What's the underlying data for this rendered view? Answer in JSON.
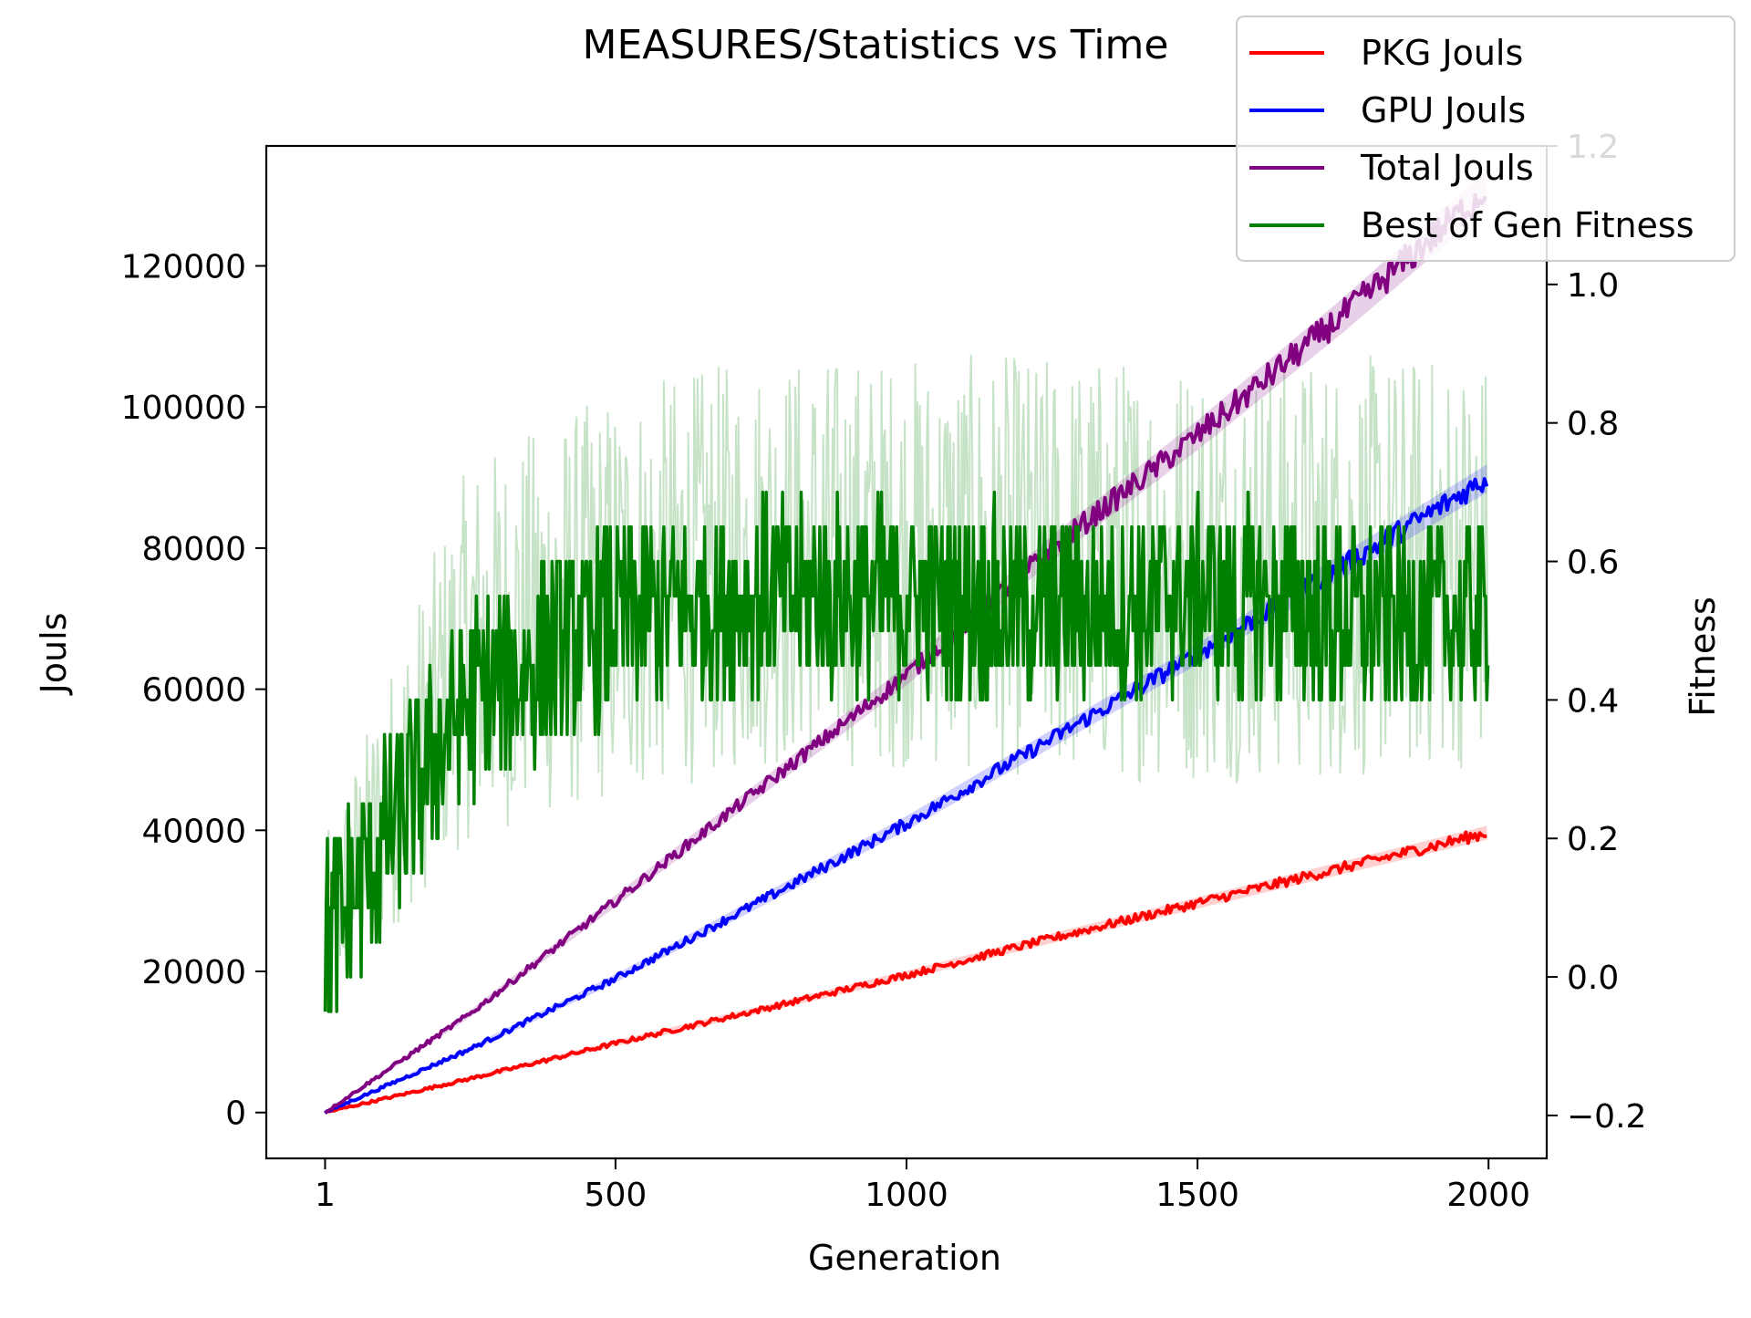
{
  "chart_data": {
    "type": "line",
    "title": "MEASURES/Statistics vs Time",
    "xlabel": "Generation",
    "ylabel": "Jouls",
    "y2label": "Fitness",
    "xlim": [
      -100,
      2100
    ],
    "ylim": [
      -6500,
      137000
    ],
    "y2lim": [
      -0.262,
      1.2
    ],
    "x_ticks": [
      1,
      500,
      1000,
      1500,
      2000
    ],
    "y_ticks": [
      0,
      20000,
      40000,
      60000,
      80000,
      100000,
      120000
    ],
    "y2_ticks": [
      -0.2,
      0.0,
      0.2,
      0.4,
      0.6,
      0.8,
      1.0,
      1.2
    ],
    "legend_position": "top-right",
    "grid": false,
    "x": [
      1,
      250,
      500,
      750,
      1000,
      1250,
      1500,
      1750,
      2000
    ],
    "series": [
      {
        "name": "PKG Jouls",
        "axis": "left",
        "color": "#ff0000",
        "values": [
          0,
          4800,
          9800,
          14600,
          19500,
          24700,
          29700,
          34700,
          39700
        ]
      },
      {
        "name": "GPU Jouls",
        "axis": "left",
        "color": "#0000ff",
        "values": [
          0,
          9000,
          19000,
          30000,
          41000,
          53000,
          65000,
          77500,
          90000
        ]
      },
      {
        "name": "Total Jouls",
        "axis": "left",
        "color": "#800080",
        "values": [
          0,
          14000,
          30000,
          46000,
          62000,
          80000,
          96000,
          113000,
          131000
        ]
      },
      {
        "name": "Best of Gen Fitness",
        "axis": "right",
        "color": "#008000",
        "band_color": "#008000",
        "values": [
          0.05,
          0.4,
          0.52,
          0.55,
          0.55,
          0.53,
          0.55,
          0.52,
          0.52
        ],
        "band_low": [
          -0.05,
          0.2,
          0.25,
          0.3,
          0.3,
          0.28,
          0.28,
          0.28,
          0.3
        ],
        "band_high": [
          0.2,
          0.75,
          0.85,
          0.9,
          0.9,
          0.9,
          0.9,
          0.9,
          0.9
        ]
      }
    ]
  }
}
